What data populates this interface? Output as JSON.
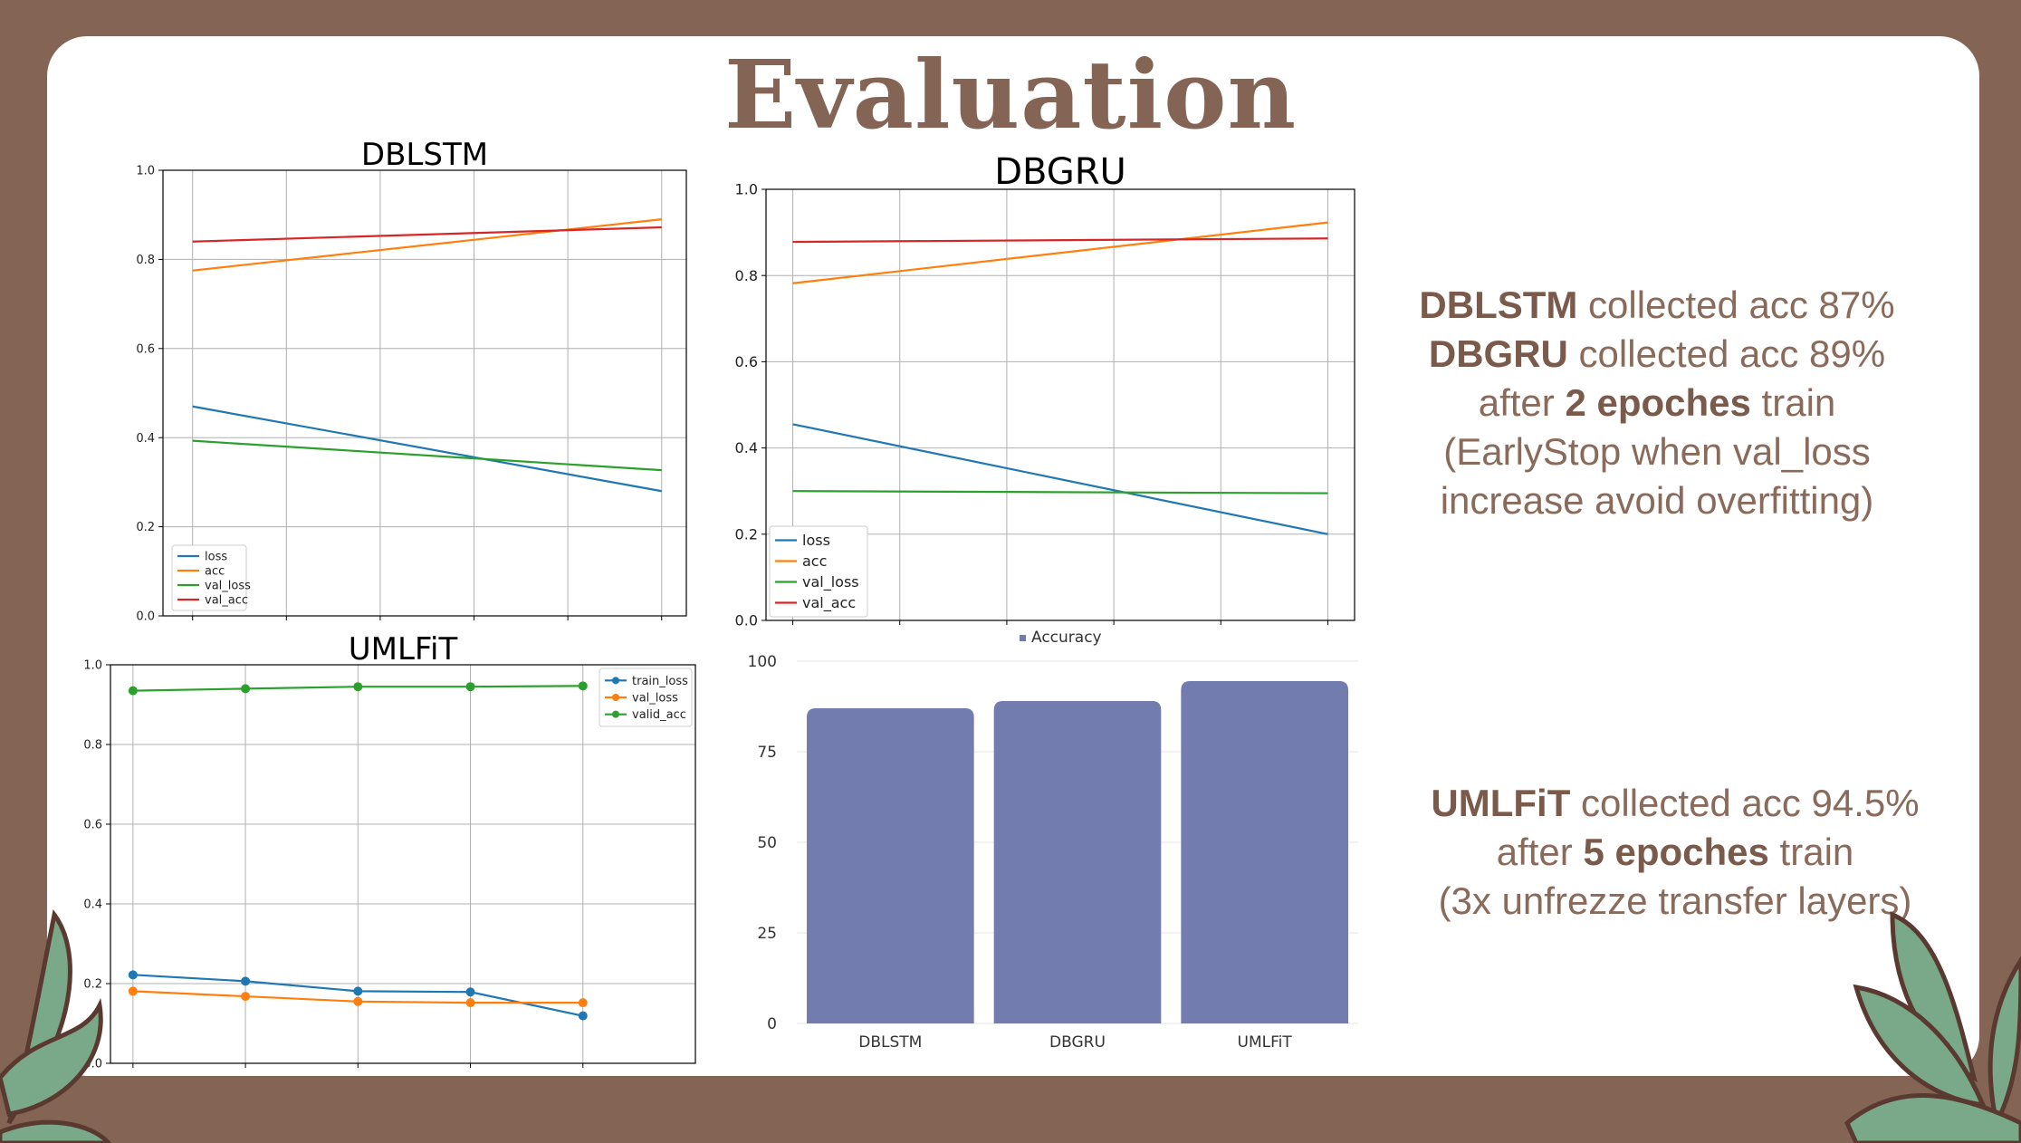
{
  "slide": {
    "title": "Evaluation"
  },
  "notes": {
    "top": {
      "line1": {
        "bold": "DBLSTM",
        "rest": " collected acc 87%"
      },
      "line2": {
        "bold": "DBGRU",
        "rest": " collected acc 89%"
      },
      "line3": {
        "pre": "after ",
        "bold": "2 epoches",
        "post": " train"
      },
      "line4": "(EarlyStop when val_loss",
      "line5": "increase avoid overfitting)"
    },
    "bottom": {
      "line1": {
        "bold": "UMLFiT",
        "rest": " collected acc 94.5%"
      },
      "line2": {
        "pre": "after ",
        "bold": "5 epoches",
        "post": " train"
      },
      "line3": "(3x unfrezze transfer layers)"
    }
  },
  "colors": {
    "background": "#846455",
    "blue": "#1f77b4",
    "orange": "#ff7f0e",
    "green": "#2ca02c",
    "red": "#d62728",
    "bar": "#727cae",
    "leaf": "#7aa98a",
    "leaf_outline": "#5a3a30"
  },
  "chart_data": [
    {
      "id": "dblstm",
      "type": "line",
      "title": "DBLSTM",
      "xlabel": "",
      "ylabel": "",
      "ylim": [
        0,
        1.0
      ],
      "xlim": [
        -0.3,
        5.0
      ],
      "x": [
        0,
        4.75
      ],
      "yticks": [
        "0.0",
        "0.2",
        "0.4",
        "0.6",
        "0.8",
        "1.0"
      ],
      "grid": true,
      "legend": "lower-left",
      "series": [
        {
          "name": "loss",
          "color": "#1f77b4",
          "values": [
            0.47,
            0.28
          ]
        },
        {
          "name": "acc",
          "color": "#ff7f0e",
          "values": [
            0.775,
            0.89
          ]
        },
        {
          "name": "val_loss",
          "color": "#2ca02c",
          "values": [
            0.393,
            0.327
          ]
        },
        {
          "name": "val_acc",
          "color": "#d62728",
          "values": [
            0.84,
            0.872
          ]
        }
      ]
    },
    {
      "id": "dbgru",
      "type": "line",
      "title": "DBGRU",
      "xlabel": "",
      "ylabel": "",
      "ylim": [
        0,
        1.0
      ],
      "xlim": [
        -0.05,
        1.05
      ],
      "x": [
        0,
        1
      ],
      "yticks": [
        "0.0",
        "0.2",
        "0.4",
        "0.6",
        "0.8",
        "1.0"
      ],
      "grid": true,
      "legend": "lower-left",
      "series": [
        {
          "name": "loss",
          "color": "#1f77b4",
          "values": [
            0.455,
            0.2
          ]
        },
        {
          "name": "acc",
          "color": "#ff7f0e",
          "values": [
            0.782,
            0.923
          ]
        },
        {
          "name": "val_loss",
          "color": "#2ca02c",
          "values": [
            0.3,
            0.295
          ]
        },
        {
          "name": "val_acc",
          "color": "#d62728",
          "values": [
            0.878,
            0.886
          ]
        }
      ]
    },
    {
      "id": "umlfit",
      "type": "line",
      "title": "UMLFiT",
      "xlabel": "",
      "ylabel": "",
      "ylim": [
        0,
        1.0
      ],
      "xlim": [
        -0.2,
        5.0
      ],
      "x": [
        0,
        1,
        2,
        3,
        4
      ],
      "yticks": [
        "0.0",
        "0.2",
        "0.4",
        "0.6",
        "0.8",
        "1.0"
      ],
      "grid": true,
      "markers": true,
      "legend": "top-right",
      "series": [
        {
          "name": "train_loss",
          "color": "#1f77b4",
          "values": [
            0.222,
            0.206,
            0.181,
            0.179,
            0.119
          ]
        },
        {
          "name": "val_loss",
          "color": "#ff7f0e",
          "values": [
            0.181,
            0.168,
            0.155,
            0.152,
            0.152
          ]
        },
        {
          "name": "valid_acc",
          "color": "#2ca02c",
          "values": [
            0.935,
            0.94,
            0.945,
            0.945,
            0.947
          ]
        }
      ]
    },
    {
      "id": "accuracy",
      "type": "bar",
      "categories": [
        "DBLSTM",
        "DBGRU",
        "UMLFiT"
      ],
      "series": [
        {
          "name": "Accuracy",
          "color": "#727cae",
          "values": [
            87,
            89,
            94.5
          ]
        }
      ],
      "ylim": [
        0,
        100
      ],
      "yticks": [
        "0",
        "25",
        "50",
        "75",
        "100"
      ],
      "legend": "top-center"
    }
  ]
}
